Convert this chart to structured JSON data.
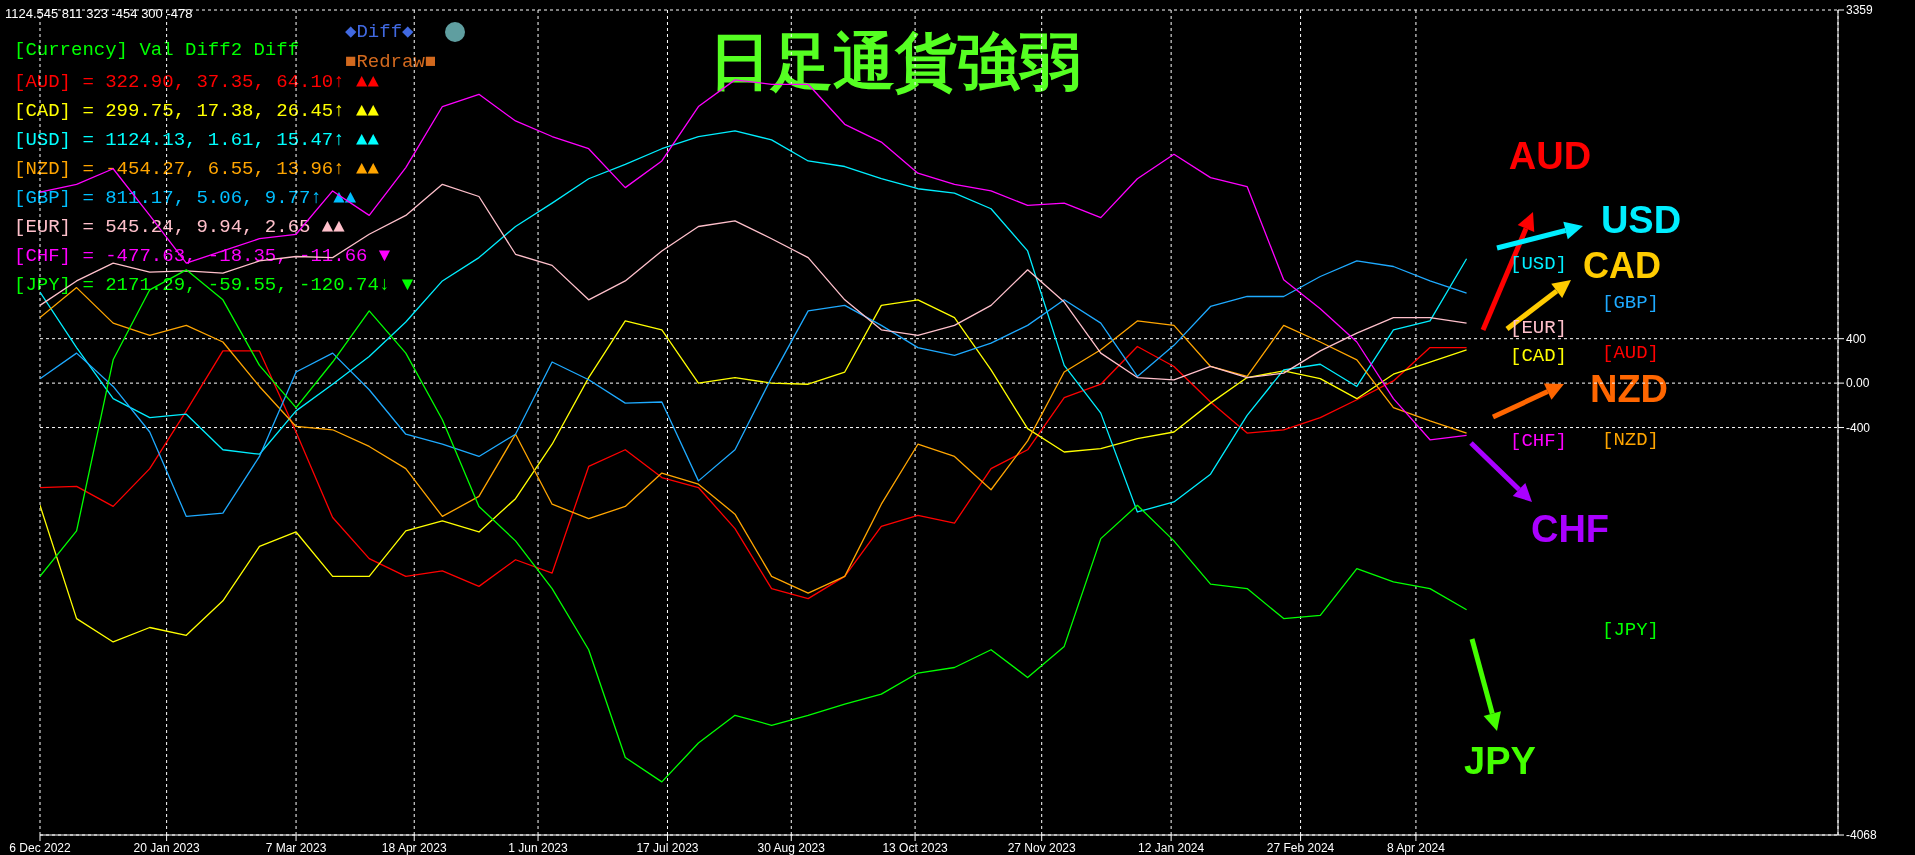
{
  "chart_data": {
    "type": "line",
    "title": "日足通貨強弱",
    "x": [
      "2022-12-06",
      "2022-12-19",
      "2023-01-01",
      "2023-01-14",
      "2023-01-27",
      "2023-02-09",
      "2023-02-22",
      "2023-03-07",
      "2023-03-20",
      "2023-04-02",
      "2023-04-15",
      "2023-04-28",
      "2023-05-11",
      "2023-05-24",
      "2023-06-06",
      "2023-06-19",
      "2023-07-02",
      "2023-07-15",
      "2023-07-28",
      "2023-08-10",
      "2023-08-23",
      "2023-09-05",
      "2023-09-18",
      "2023-10-01",
      "2023-10-14",
      "2023-10-27",
      "2023-11-09",
      "2023-11-22",
      "2023-12-05",
      "2023-12-18",
      "2023-12-31",
      "2024-01-13",
      "2024-01-26",
      "2024-02-08",
      "2024-02-21",
      "2024-03-05",
      "2024-03-18",
      "2024-03-31",
      "2024-04-13",
      "2024-04-26"
    ],
    "series": [
      {
        "name": "[AUD]",
        "color": "#ff0000",
        "values": [
          -940,
          -930,
          -1110,
          -770,
          -250,
          290,
          290,
          -440,
          -1210,
          -1580,
          -1740,
          -1690,
          -1830,
          -1590,
          -1710,
          -750,
          -600,
          -850,
          -940,
          -1310,
          -1850,
          -1940,
          -1740,
          -1290,
          -1190,
          -1260,
          -770,
          -600,
          -130,
          -10,
          330,
          150,
          -170,
          -450,
          -420,
          -310,
          -150,
          20,
          320,
          320
        ]
      },
      {
        "name": "[CAD]",
        "color": "#ffff00",
        "values": [
          -1100,
          -2120,
          -2330,
          -2200,
          -2270,
          -1960,
          -1470,
          -1340,
          -1740,
          -1740,
          -1330,
          -1240,
          -1340,
          -1040,
          -550,
          50,
          560,
          480,
          0,
          50,
          0,
          -10,
          100,
          700,
          750,
          590,
          120,
          -410,
          -620,
          -590,
          -500,
          -440,
          -180,
          50,
          110,
          40,
          -140,
          80,
          190,
          300
        ]
      },
      {
        "name": "[USD]",
        "color": "#00eeff",
        "values": [
          820,
          320,
          -140,
          -310,
          -280,
          -600,
          -640,
          -250,
          -10,
          240,
          550,
          920,
          1130,
          1410,
          1620,
          1840,
          1970,
          2110,
          2220,
          2270,
          2190,
          2000,
          1950,
          1840,
          1750,
          1710,
          1570,
          1190,
          160,
          -270,
          -1160,
          -1070,
          -820,
          -290,
          120,
          170,
          -30,
          480,
          560,
          1120
        ]
      },
      {
        "name": "[NZD]",
        "color": "#ffa500",
        "values": [
          590,
          860,
          540,
          430,
          520,
          370,
          -30,
          -390,
          -420,
          -570,
          -770,
          -1200,
          -1020,
          -460,
          -1090,
          -1220,
          -1110,
          -810,
          -910,
          -1180,
          -1740,
          -1890,
          -1740,
          -1090,
          -550,
          -660,
          -960,
          -520,
          100,
          300,
          560,
          520,
          150,
          60,
          520,
          370,
          210,
          -220,
          -340,
          -450
        ]
      },
      {
        "name": "[GBP]",
        "color": "#1eaaff",
        "values": [
          40,
          270,
          -30,
          -440,
          -1200,
          -1170,
          -660,
          100,
          270,
          -60,
          -460,
          -550,
          -660,
          -460,
          190,
          30,
          -180,
          -170,
          -880,
          -600,
          50,
          650,
          700,
          520,
          320,
          250,
          360,
          520,
          750,
          540,
          60,
          340,
          690,
          780,
          780,
          960,
          1100,
          1050,
          920,
          810
        ]
      },
      {
        "name": "[EUR]",
        "color": "#ffc0cb",
        "values": [
          700,
          920,
          1080,
          1000,
          1010,
          990,
          1100,
          1140,
          1130,
          1340,
          1510,
          1790,
          1680,
          1160,
          1060,
          750,
          920,
          1190,
          1410,
          1460,
          1300,
          1130,
          750,
          480,
          430,
          520,
          700,
          1020,
          730,
          270,
          50,
          30,
          150,
          50,
          90,
          290,
          450,
          590,
          590,
          540
        ]
      },
      {
        "name": "[CHF]",
        "color": "#ff00ff",
        "values": [
          1720,
          1790,
          1930,
          1510,
          1080,
          1190,
          1300,
          1340,
          1730,
          1510,
          1940,
          2490,
          2600,
          2360,
          2220,
          2110,
          1760,
          2000,
          2490,
          2730,
          2690,
          2690,
          2330,
          2170,
          1890,
          1790,
          1730,
          1600,
          1620,
          1490,
          1840,
          2060,
          1850,
          1770,
          930,
          670,
          370,
          -140,
          -510,
          -470
        ]
      },
      {
        "name": "[JPY]",
        "color": "#00ff00",
        "values": [
          -1740,
          -1330,
          210,
          840,
          1020,
          750,
          160,
          -220,
          190,
          650,
          270,
          -330,
          -1110,
          -1420,
          -1850,
          -2400,
          -3370,
          -3590,
          -3240,
          -2990,
          -3080,
          -2990,
          -2890,
          -2800,
          -2610,
          -2560,
          -2400,
          -2650,
          -2370,
          -1400,
          -1100,
          -1420,
          -1810,
          -1850,
          -2120,
          -2090,
          -1670,
          -1790,
          -1850,
          -2040
        ]
      }
    ],
    "xlim": [
      "2022-12-06",
      "2024-09-05"
    ],
    "xticks": [
      {
        "value": "2022-12-06",
        "label": "6 Dec 2022"
      },
      {
        "value": "2023-01-20",
        "label": "20 Jan 2023"
      },
      {
        "value": "2023-03-07",
        "label": "7 Mar 2023"
      },
      {
        "value": "2023-04-18",
        "label": "18 Apr 2023"
      },
      {
        "value": "2023-06-01",
        "label": "1 Jun 2023"
      },
      {
        "value": "2023-07-17",
        "label": "17 Jul 2023"
      },
      {
        "value": "2023-08-30",
        "label": "30 Aug 2023"
      },
      {
        "value": "2023-10-13",
        "label": "13 Oct 2023"
      },
      {
        "value": "2023-11-27",
        "label": "27 Nov 2023"
      },
      {
        "value": "2024-01-12",
        "label": "12 Jan 2024"
      },
      {
        "value": "2024-02-27",
        "label": "27 Feb 2024"
      },
      {
        "value": "2024-04-08",
        "label": "8 Apr 2024"
      }
    ],
    "ylim": [
      -4068,
      3359
    ],
    "yticks": [
      3359,
      400,
      {
        "value": 0,
        "label": "0.00"
      },
      -400,
      -4068
    ],
    "grid": true,
    "legend": "right",
    "annotations": [
      "1124.545 811 323 -454 300 -478",
      "[Currency] Val Diff2 Diff",
      "[AUD] = 322.90, 37.35, 64.10↑ ▲▲",
      "[CAD] = 299.75, 17.38, 26.45↑ ▲▲",
      "[USD] = 1124.13, 1.61, 15.47↑ ▲▲",
      "[NZD] = -454.27, 6.55, 13.96↑ ▲▲",
      "[GBP] = 811.17, 5.06, 9.77↑ ▲▲",
      "[EUR] = 545.24, 9.94, 2.65 ▲▲",
      "[CHF] = -477.63, -18.35, -11.66 ▼",
      "[JPY] = 2171.29, -59.55, -120.74↓ ▼",
      "◆Diff◆",
      "■Redraw■",
      "AUD",
      "USD",
      "CAD",
      "NZD",
      "CHF",
      "JPY"
    ]
  }
}
